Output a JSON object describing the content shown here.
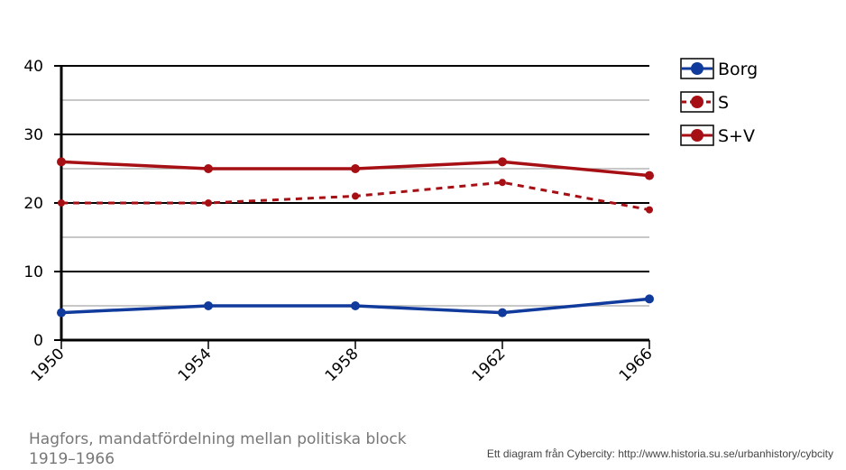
{
  "chart_data": {
    "type": "line",
    "title": "Hagfors, mandatfördelning  mellan politiska block 1919–1966",
    "xlabel": "",
    "ylabel": "",
    "x": [
      "1950",
      "1954",
      "1958",
      "1962",
      "1966"
    ],
    "ylim": [
      0,
      40
    ],
    "yticks": [
      0,
      10,
      20,
      30,
      40
    ],
    "minor_gridlines": [
      5,
      15,
      25,
      35
    ],
    "grid": true,
    "legend_position": "top-right",
    "series": [
      {
        "name": "Borg",
        "values": [
          4,
          5,
          5,
          4,
          6
        ],
        "color": "#103a9b",
        "style": "solid"
      },
      {
        "name": "S",
        "values": [
          20,
          20,
          21,
          23,
          19
        ],
        "color": "#a60f14",
        "style": "dashed"
      },
      {
        "name": "S+V",
        "values": [
          26,
          25,
          25,
          26,
          24
        ],
        "color": "#a60f14",
        "style": "solid"
      }
    ]
  },
  "caption": "Hagfors, mandatfördelning  mellan politiska block 1919–1966",
  "credit": "Ett diagram från Cybercity: http://www.historia.su.se/urbanhistory/cybcity"
}
